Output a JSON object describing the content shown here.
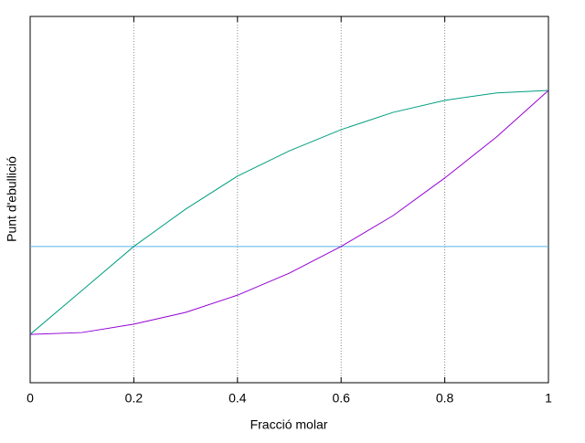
{
  "chart_data": {
    "type": "line",
    "xlabel": "Fracció molar",
    "ylabel": "Punt d'ebullició",
    "x": [
      0,
      0.1,
      0.2,
      0.3,
      0.4,
      0.5,
      0.6,
      0.7,
      0.8,
      0.9,
      1
    ],
    "series": [
      {
        "color": "#009e80",
        "values": [
          0.132,
          0.252,
          0.372,
          0.474,
          0.564,
          0.633,
          0.691,
          0.738,
          0.771,
          0.791,
          0.798
        ]
      },
      {
        "color": "#9400d3",
        "values": [
          0.132,
          0.137,
          0.16,
          0.192,
          0.239,
          0.299,
          0.372,
          0.456,
          0.559,
          0.671,
          0.798
        ]
      }
    ],
    "reference_line": {
      "value": 0.372,
      "color": "#56b4e9"
    },
    "xlim": [
      0,
      1
    ],
    "ylim": [
      0,
      1
    ],
    "xticks": [
      0,
      0.2,
      0.4,
      0.6,
      0.8,
      1
    ],
    "grid": true
  }
}
